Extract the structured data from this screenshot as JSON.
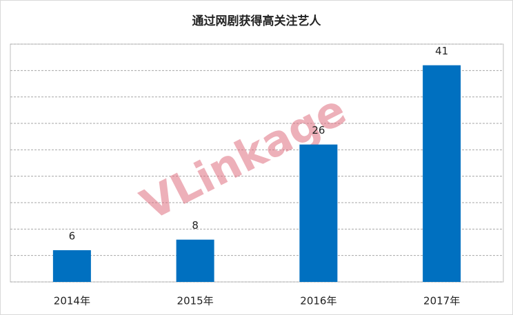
{
  "chart_data": {
    "type": "bar",
    "title": "通过网剧获得高关注艺人",
    "categories": [
      "2014年",
      "2015年",
      "2016年",
      "2017年"
    ],
    "values": [
      6,
      8,
      26,
      41
    ],
    "color": "#0070c0",
    "ylim": [
      0,
      45
    ],
    "yticks": [
      0,
      5,
      10,
      15,
      20,
      25,
      30,
      35,
      40,
      45
    ],
    "grid": true,
    "watermark": "VLinkage"
  }
}
